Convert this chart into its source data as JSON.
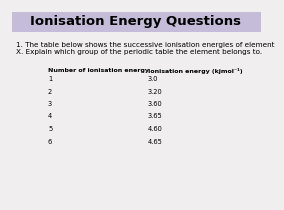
{
  "title": "Ionisation Energy Questions",
  "title_bg": "#c4bcd8",
  "bg_color": "#f0eeee",
  "question_line1": "1. The table below shows the successive ionisation energies of element",
  "question_line2": "X. Explain which group of the periodic table the element belongs to.",
  "col1_header": "Number of ionisation energy",
  "col2_header": "Ionisation energy (kjmol⁻¹)",
  "table_data": [
    [
      "1",
      "3.0"
    ],
    [
      "2",
      "3.20"
    ],
    [
      "3",
      "3.60"
    ],
    [
      "4",
      "3.65"
    ],
    [
      "5",
      "4.60"
    ],
    [
      "6",
      "4.65"
    ]
  ],
  "font_size_title": 9.5,
  "font_size_body": 5.2,
  "font_size_table_header": 4.5,
  "font_size_table_row": 4.8
}
